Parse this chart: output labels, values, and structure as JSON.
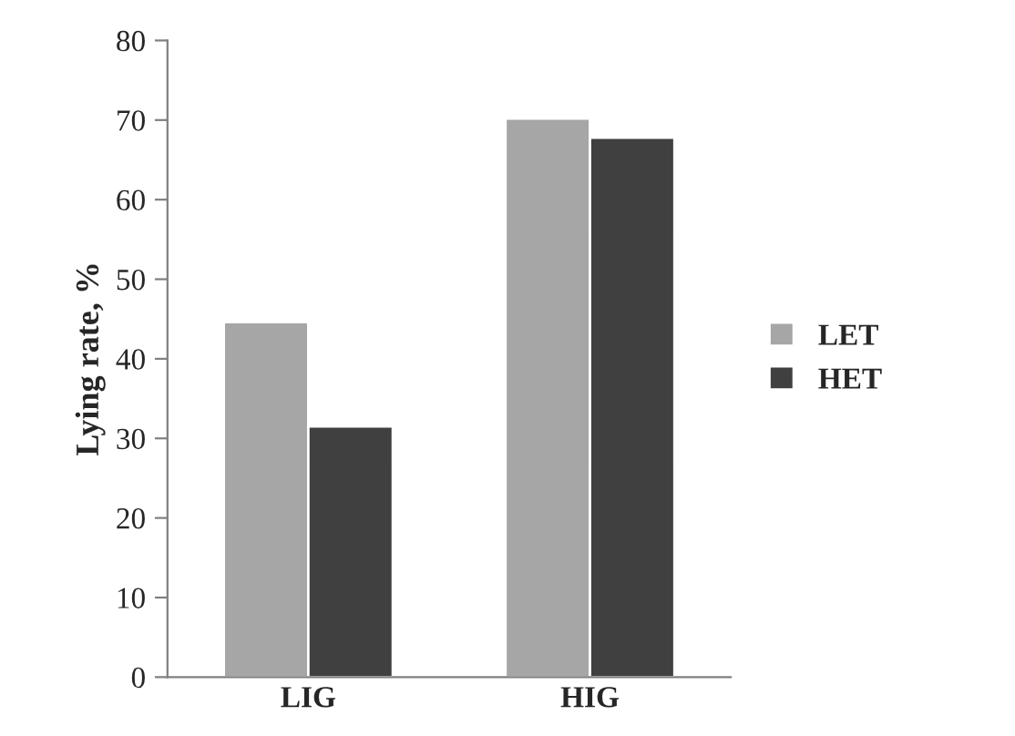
{
  "chart_data": {
    "type": "bar",
    "ylabel": "Lying rate, %",
    "categories": [
      "LIG",
      "HIG"
    ],
    "series": [
      {
        "name": "LET",
        "color": "#a6a6a6",
        "values": [
          44.6,
          70.2
        ]
      },
      {
        "name": "HET",
        "color": "#404040",
        "values": [
          31.5,
          67.8
        ]
      }
    ],
    "ylim": [
      0,
      80
    ],
    "yticks": [
      0,
      10,
      20,
      30,
      40,
      50,
      60,
      70,
      80
    ],
    "grid": false,
    "legend": "right"
  }
}
